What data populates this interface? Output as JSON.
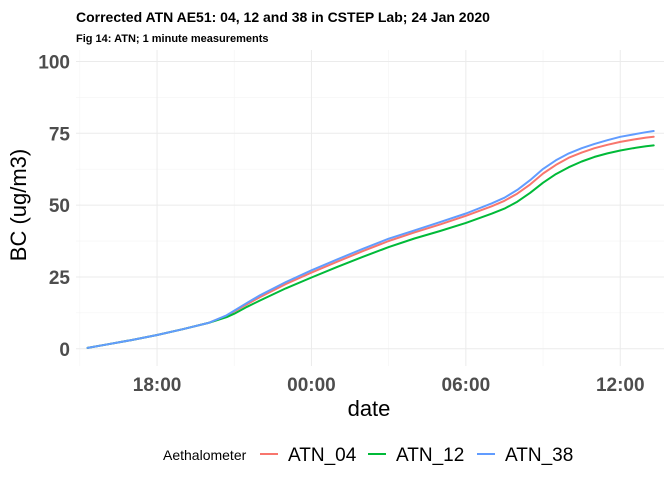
{
  "chart_data": {
    "type": "line",
    "title": "Corrected ATN AE51: 04, 12 and 38 in CSTEP Lab; 24 Jan 2020",
    "subtitle": "Fig 14: ATN; 1 minute measurements",
    "xlabel": "date",
    "ylabel": "BC (ug/m3)",
    "x_unit": "hours",
    "xlim": [
      14.85,
      37.7
    ],
    "ylim": [
      -6,
      104
    ],
    "x_ticks": [
      {
        "value": 18,
        "label": "18:00"
      },
      {
        "value": 24,
        "label": "00:00"
      },
      {
        "value": 30,
        "label": "06:00"
      },
      {
        "value": 36,
        "label": "12:00"
      }
    ],
    "y_ticks": [
      {
        "value": 0,
        "label": "0"
      },
      {
        "value": 25,
        "label": "25"
      },
      {
        "value": 50,
        "label": "50"
      },
      {
        "value": 75,
        "label": "75"
      },
      {
        "value": 100,
        "label": "100"
      }
    ],
    "grid": true,
    "legend": {
      "title": "Aethalometer",
      "position": "bottom"
    },
    "x": [
      15.3,
      16.0,
      17.0,
      18.0,
      19.0,
      20.0,
      20.7,
      21.0,
      21.5,
      22.0,
      23.0,
      24.0,
      25.0,
      26.0,
      27.0,
      28.0,
      29.0,
      30.0,
      31.0,
      31.5,
      32.0,
      32.5,
      33.0,
      33.5,
      34.0,
      34.5,
      35.0,
      35.5,
      36.0,
      36.5,
      37.0,
      37.3
    ],
    "series": [
      {
        "name": "ATN_04",
        "color": "#F8766D",
        "values": [
          0.3,
          1.4,
          3.0,
          4.8,
          6.8,
          9.0,
          11.5,
          13.0,
          15.5,
          18.0,
          22.5,
          26.5,
          30.3,
          34.0,
          37.5,
          40.5,
          43.3,
          46.3,
          49.6,
          51.5,
          54.0,
          57.2,
          61.0,
          64.0,
          66.5,
          68.3,
          69.8,
          71.0,
          72.0,
          72.8,
          73.5,
          73.8
        ]
      },
      {
        "name": "ATN_12",
        "color": "#00BA38",
        "values": [
          0.3,
          1.4,
          3.0,
          4.8,
          6.8,
          9.0,
          11.0,
          12.2,
          14.6,
          16.8,
          21.0,
          24.8,
          28.5,
          32.0,
          35.4,
          38.4,
          41.0,
          43.8,
          47.0,
          48.8,
          51.2,
          54.3,
          57.8,
          60.8,
          63.2,
          65.2,
          66.8,
          68.0,
          69.0,
          69.8,
          70.5,
          70.8
        ]
      },
      {
        "name": "ATN_38",
        "color": "#619CFF",
        "values": [
          0.3,
          1.4,
          3.0,
          4.8,
          6.8,
          9.0,
          11.6,
          13.3,
          16.0,
          18.6,
          23.2,
          27.3,
          31.1,
          34.8,
          38.3,
          41.2,
          44.1,
          47.1,
          50.6,
          52.6,
          55.3,
          58.7,
          62.6,
          65.6,
          68.0,
          69.8,
          71.3,
          72.6,
          73.8,
          74.6,
          75.4,
          75.8
        ]
      }
    ]
  }
}
